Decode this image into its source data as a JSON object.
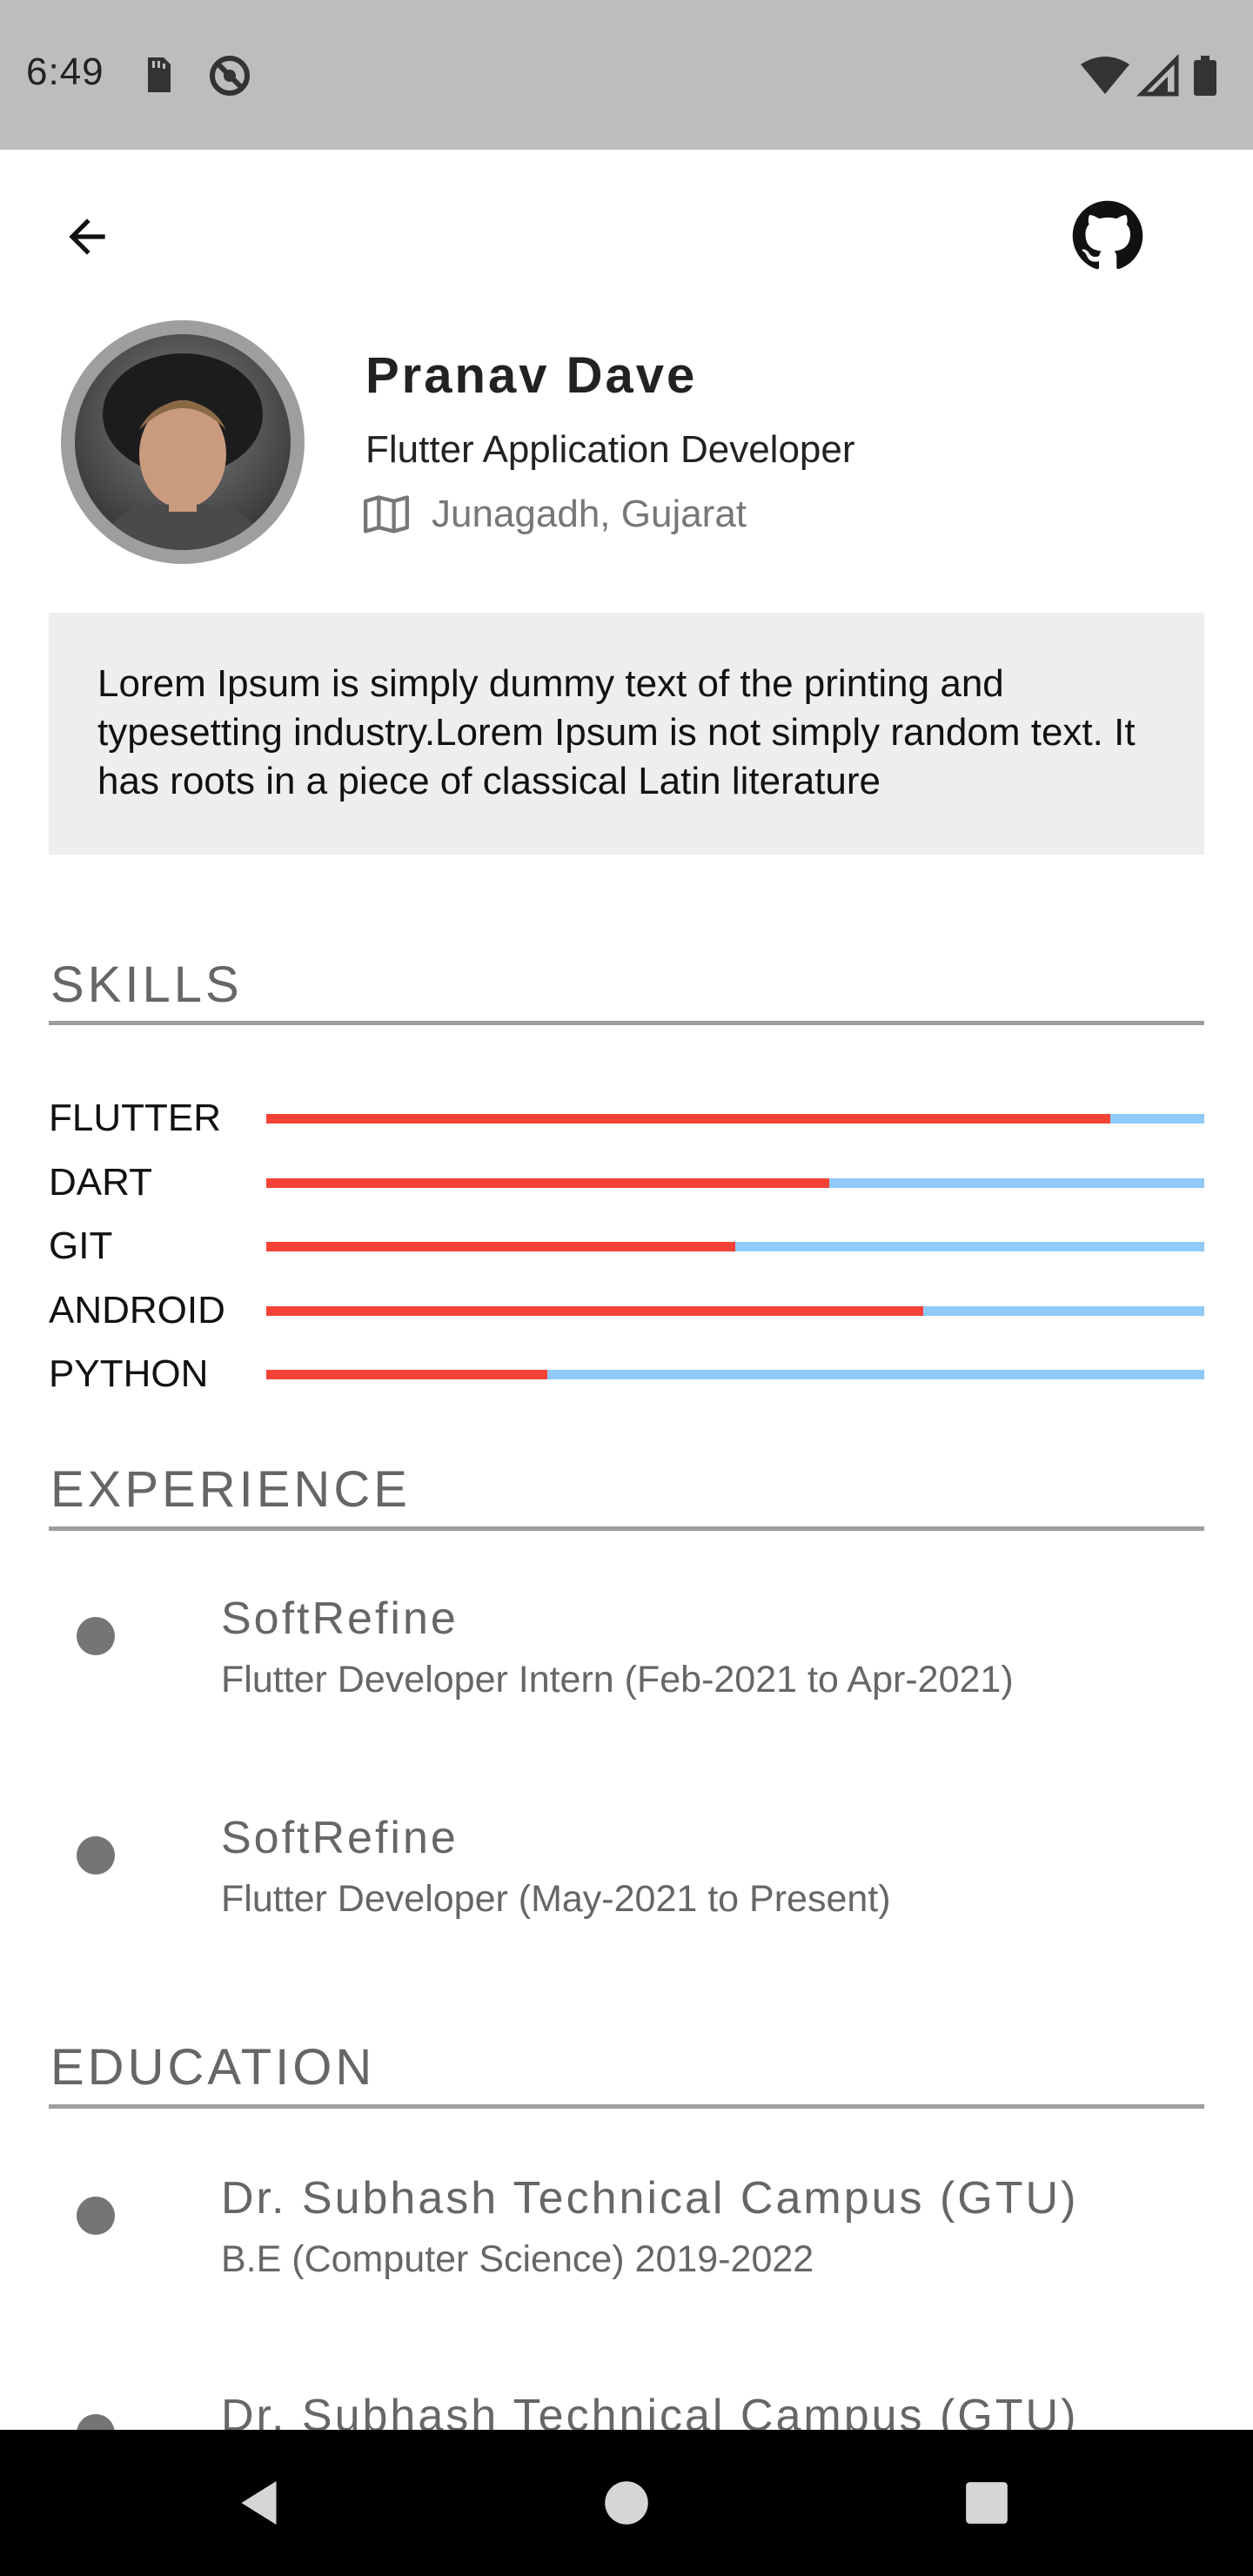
{
  "status_bar": {
    "time": "6:49",
    "left_icons": [
      "sd-card-icon",
      "do-not-disturb-icon"
    ],
    "right_icons": [
      "wifi-icon",
      "cell-signal-icon",
      "battery-icon"
    ]
  },
  "header": {
    "back_icon": "arrow-back-icon",
    "github_icon": "github-icon"
  },
  "profile": {
    "name": "Pranav Dave",
    "title": "Flutter Application Developer",
    "location": "Junagadh, Gujarat",
    "location_icon": "map-icon"
  },
  "bio": {
    "text": "Lorem Ipsum is simply dummy text of the printing and typesetting industry.Lorem Ipsum is not simply random text. It has roots in a piece of classical Latin literature"
  },
  "skills": {
    "heading": "SKILLS",
    "fill_color": "#f44336",
    "track_color": "#90caf9",
    "items": [
      {
        "name": "FLUTTER",
        "level": 0.9
      },
      {
        "name": "DART",
        "level": 0.6
      },
      {
        "name": "GIT",
        "level": 0.5
      },
      {
        "name": "ANDROID",
        "level": 0.7
      },
      {
        "name": "PYTHON",
        "level": 0.3
      }
    ]
  },
  "experience": {
    "heading": "EXPERIENCE",
    "items": [
      {
        "company": "SoftRefine",
        "detail": "Flutter Developer Intern  (Feb-2021 to Apr-2021)"
      },
      {
        "company": "SoftRefine",
        "detail": "Flutter Developer  (May-2021 to Present)"
      }
    ]
  },
  "education": {
    "heading": "EDUCATION",
    "items": [
      {
        "institute": "Dr. Subhash Technical Campus (GTU)",
        "detail": "B.E (Computer Science)  2019-2022"
      },
      {
        "institute": "Dr. Subhash Technical Campus (GTU)",
        "detail": ""
      }
    ]
  },
  "nav_bar": {
    "icons": [
      "nav-back-icon",
      "nav-home-icon",
      "nav-recents-icon"
    ]
  }
}
